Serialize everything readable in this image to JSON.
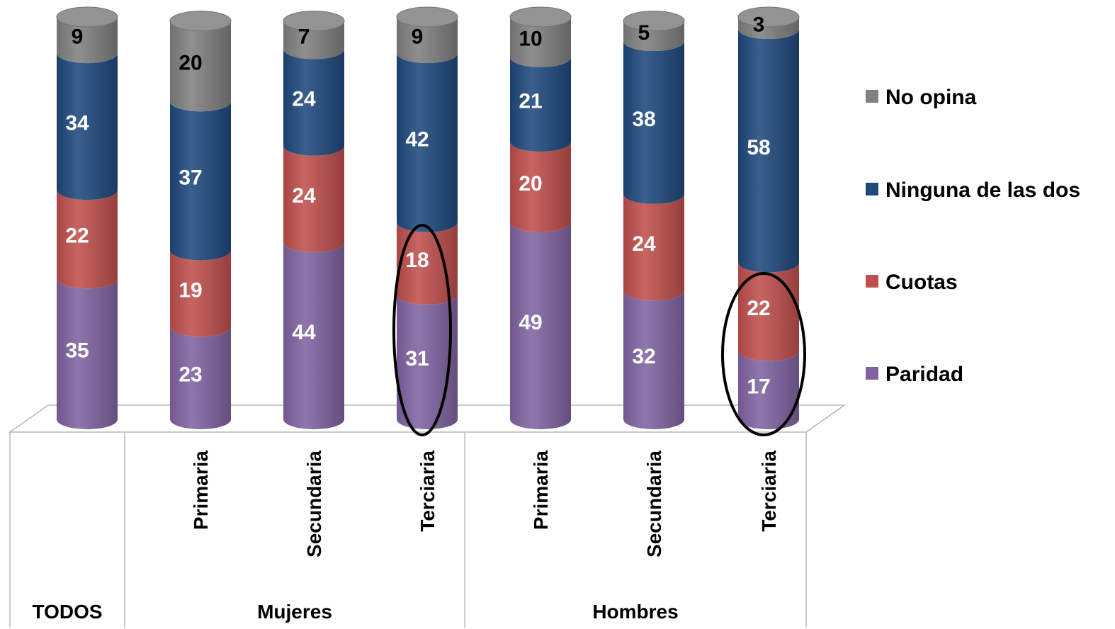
{
  "chart_data": {
    "type": "bar",
    "stacked": true,
    "categories": [
      "",
      "Primaria",
      "Secundaria",
      "Terciaria",
      "Primaria",
      "Secundaria",
      "Terciaria"
    ],
    "groups": [
      {
        "label": "TODOS",
        "members": [
          0
        ]
      },
      {
        "label": "Mujeres",
        "members": [
          1,
          2,
          3
        ]
      },
      {
        "label": "Hombres",
        "members": [
          4,
          5,
          6
        ]
      }
    ],
    "series": [
      {
        "name": "Paridad",
        "color": "#8064a2",
        "values": [
          35,
          23,
          44,
          31,
          49,
          32,
          17
        ]
      },
      {
        "name": "Cuotas",
        "color": "#c0504d",
        "values": [
          22,
          19,
          24,
          18,
          20,
          24,
          22
        ]
      },
      {
        "name": "Ninguna de las dos",
        "color": "#1f497d",
        "values": [
          34,
          37,
          24,
          42,
          21,
          38,
          58
        ]
      },
      {
        "name": "No opina",
        "color": "#808080",
        "values": [
          9,
          20,
          7,
          9,
          10,
          5,
          3
        ]
      }
    ],
    "legend": {
      "placement": "right",
      "order": [
        "No opina",
        "Ninguna de las dos",
        "Cuotas",
        "Paridad"
      ]
    },
    "highlighted_bars": [
      3,
      6
    ],
    "ylim": [
      0,
      100
    ],
    "grid": false
  }
}
